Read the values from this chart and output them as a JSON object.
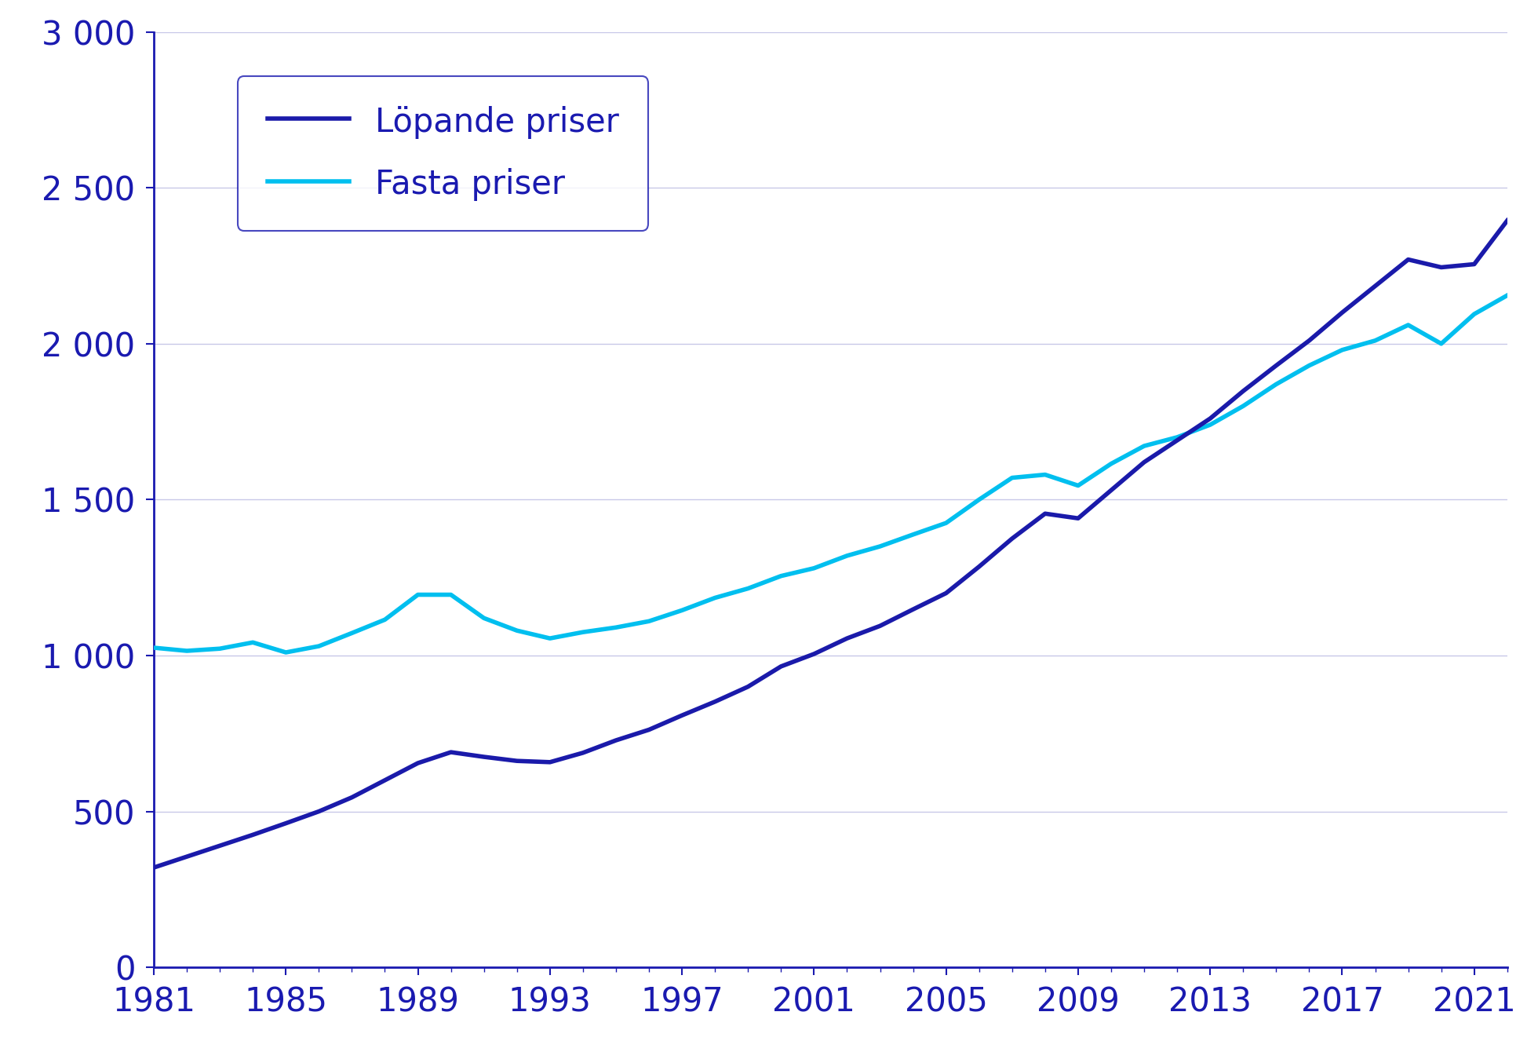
{
  "years": [
    1981,
    1982,
    1983,
    1984,
    1985,
    1986,
    1987,
    1988,
    1989,
    1990,
    1991,
    1992,
    1993,
    1994,
    1995,
    1996,
    1997,
    1998,
    1999,
    2000,
    2001,
    2002,
    2003,
    2004,
    2005,
    2006,
    2007,
    2008,
    2009,
    2010,
    2011,
    2012,
    2013,
    2014,
    2015,
    2016,
    2017,
    2018,
    2019,
    2020,
    2021,
    2022
  ],
  "lopande": [
    320,
    355,
    390,
    425,
    462,
    500,
    545,
    600,
    655,
    690,
    675,
    662,
    658,
    688,
    728,
    762,
    808,
    852,
    900,
    965,
    1005,
    1055,
    1095,
    1148,
    1200,
    1285,
    1375,
    1455,
    1440,
    1530,
    1620,
    1690,
    1760,
    1848,
    1930,
    2010,
    2100,
    2185,
    2270,
    2245,
    2255,
    2395
  ],
  "fasta": [
    1025,
    1015,
    1022,
    1042,
    1010,
    1030,
    1072,
    1115,
    1195,
    1195,
    1120,
    1080,
    1055,
    1075,
    1090,
    1110,
    1145,
    1185,
    1215,
    1255,
    1280,
    1320,
    1350,
    1388,
    1425,
    1500,
    1570,
    1580,
    1545,
    1615,
    1672,
    1700,
    1740,
    1800,
    1870,
    1930,
    1980,
    2010,
    2060,
    2000,
    2095,
    2155
  ],
  "lopande_color": "#1a1aaa",
  "fasta_color": "#00bfef",
  "line_width": 4.0,
  "legend_lopande": "Löpande priser",
  "legend_fasta": "Fasta priser",
  "yticks": [
    0,
    500,
    1000,
    1500,
    2000,
    2500,
    3000
  ],
  "ytick_labels": [
    "0",
    "500",
    "1 000",
    "1 500",
    "2 000",
    "2 500",
    "3 000"
  ],
  "xtick_labels": [
    1981,
    1985,
    1989,
    1993,
    1997,
    2001,
    2005,
    2009,
    2013,
    2017,
    2021
  ],
  "xlim": [
    1981,
    2022
  ],
  "ylim": [
    0,
    3000
  ],
  "grid_color": "#c8c8e8",
  "text_color": "#1a1ab0",
  "background_color": "#ffffff",
  "axis_color": "#1a1ab0",
  "legend_fontsize": 30,
  "tick_fontsize": 30
}
